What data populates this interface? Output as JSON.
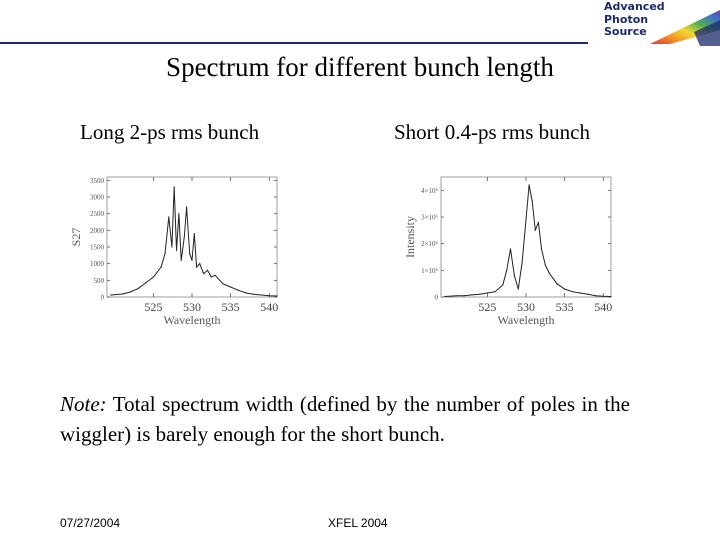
{
  "header": {
    "logo_lines": [
      "Advanced",
      "Photon",
      "Source"
    ]
  },
  "title": "Spectrum for different bunch length",
  "subtitles": {
    "left": "Long 2-ps rms bunch",
    "right": "Short 0.4-ps rms bunch"
  },
  "chart_data": [
    {
      "type": "line",
      "title": "",
      "xlabel": "Wavelength",
      "ylabel": "S27",
      "xlim": [
        519,
        541
      ],
      "ylim": [
        0,
        3600
      ],
      "x_ticks": [
        "525",
        "530",
        "535",
        "540"
      ],
      "y_ticks": [
        "0",
        "500",
        "1000",
        "1500",
        "2000",
        "2500",
        "3000",
        "3500"
      ],
      "x": [
        519.5,
        521,
        522,
        523,
        524,
        525,
        526,
        526.5,
        527,
        527.4,
        527.7,
        528,
        528.3,
        528.6,
        529,
        529.3,
        529.7,
        530,
        530.3,
        530.6,
        531,
        531.5,
        532,
        532.5,
        533,
        534,
        535,
        536,
        537,
        538,
        539,
        540,
        541
      ],
      "y": [
        60,
        90,
        150,
        250,
        420,
        600,
        900,
        1300,
        2400,
        1500,
        3300,
        1400,
        2500,
        1100,
        1800,
        2700,
        1300,
        1100,
        1900,
        900,
        1000,
        700,
        800,
        600,
        650,
        400,
        300,
        200,
        120,
        80,
        60,
        40,
        30
      ]
    },
    {
      "type": "line",
      "title": "",
      "xlabel": "Wavelength",
      "ylabel": "Intensity",
      "xlim": [
        519,
        541
      ],
      "ylim": [
        0,
        4.5
      ],
      "x_ticks": [
        "525",
        "530",
        "535",
        "540"
      ],
      "y_ticks": [
        "0",
        "1×10⁶",
        "2×10⁶",
        "3×10⁶",
        "4×10⁶"
      ],
      "x": [
        519.5,
        521,
        522,
        523,
        524,
        525,
        526,
        527,
        527.5,
        528,
        528.5,
        529,
        529.5,
        530,
        530.4,
        530.8,
        531.2,
        531.6,
        532,
        532.5,
        533,
        533.5,
        534,
        535,
        536,
        537,
        538,
        539,
        540,
        541
      ],
      "y": [
        0.02,
        0.05,
        0.05,
        0.08,
        0.1,
        0.15,
        0.2,
        0.45,
        1.0,
        1.8,
        0.8,
        0.3,
        1.3,
        2.9,
        4.2,
        3.6,
        2.5,
        2.8,
        1.8,
        1.2,
        0.9,
        0.7,
        0.5,
        0.3,
        0.2,
        0.15,
        0.1,
        0.05,
        0.03,
        0.02
      ]
    }
  ],
  "note": {
    "lead": "Note:",
    "text": " Total spectrum width (defined by the number of poles in the wiggler) is barely enough for the short bunch."
  },
  "footer": {
    "date": "07/27/2004",
    "conference": "XFEL 2004"
  },
  "colors": {
    "header_line": "#1b2a6b",
    "logo_text": "#1b2a6b"
  }
}
